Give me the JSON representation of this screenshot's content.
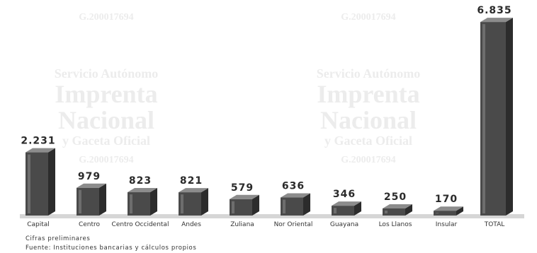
{
  "watermark": {
    "line1": "Servicio Autónomo",
    "line2": "Imprenta",
    "line3": "Nacional",
    "line4": "y Gaceta Oficial",
    "code": "G.200017694"
  },
  "chart_data": {
    "type": "bar",
    "categories": [
      "Capital",
      "Centro",
      "Centro Occidental",
      "Andes",
      "Zuliana",
      "Nor Oriental",
      "Guayana",
      "Los Llanos",
      "Insular",
      "TOTAL"
    ],
    "values": [
      2231,
      979,
      823,
      821,
      579,
      636,
      346,
      250,
      170,
      6835
    ],
    "value_labels": [
      "2.231",
      "979",
      "823",
      "821",
      "579",
      "636",
      "346",
      "250",
      "170",
      "6.835"
    ],
    "title": "",
    "xlabel": "",
    "ylabel": "",
    "ylim": [
      0,
      7000
    ],
    "grid": false,
    "legend": "none",
    "style": "3d-bar",
    "colors": {
      "bar_front": "#4a4a4a",
      "bar_side": "#2c2c2c",
      "bar_top": "#8c8c8c",
      "label": "#2a2a2a"
    }
  },
  "notes": {
    "line1": "Cifras preliminares",
    "line2": "Fuente: Instituciones bancarias y cálculos propios"
  }
}
